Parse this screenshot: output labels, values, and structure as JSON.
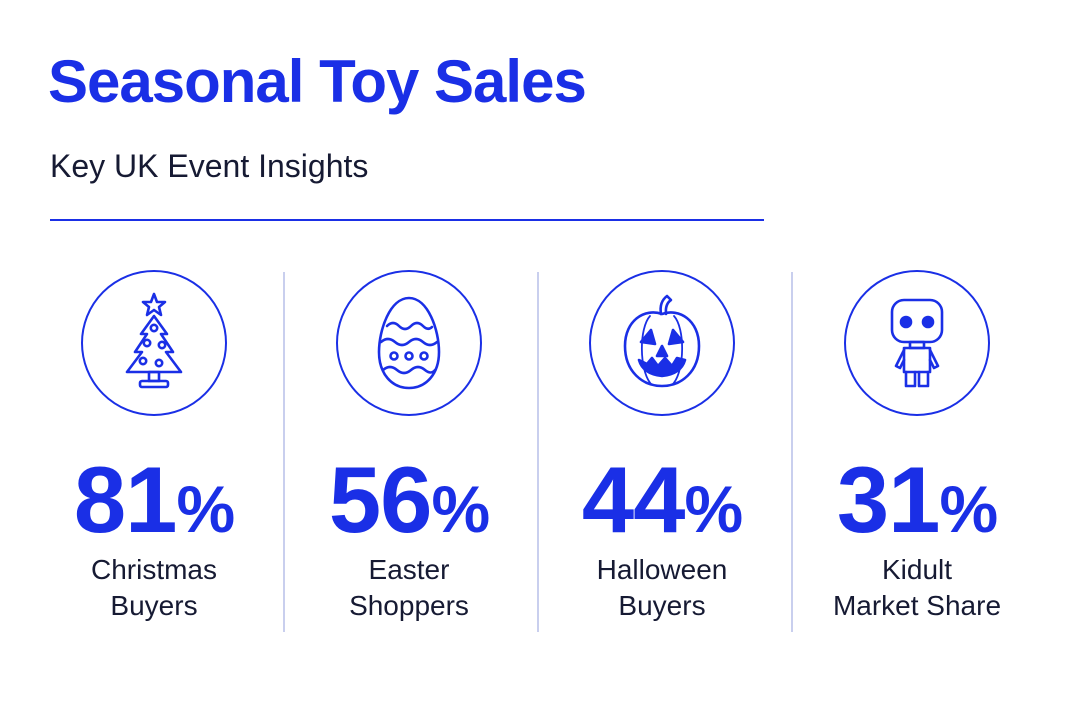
{
  "header": {
    "title": "Seasonal Toy Sales",
    "subtitle": "Key UK Event Insights"
  },
  "colors": {
    "accent": "#1a2fe6",
    "text": "#161a33",
    "divider": "#c9cfee"
  },
  "stats": [
    {
      "icon": "christmas-tree-icon",
      "value": "81",
      "unit": "%",
      "label_line1": "Christmas",
      "label_line2": "Buyers"
    },
    {
      "icon": "easter-egg-icon",
      "value": "56",
      "unit": "%",
      "label_line1": "Easter",
      "label_line2": "Shoppers"
    },
    {
      "icon": "pumpkin-icon",
      "value": "44",
      "unit": "%",
      "label_line1": "Halloween",
      "label_line2": "Buyers"
    },
    {
      "icon": "toy-figure-icon",
      "value": "31",
      "unit": "%",
      "label_line1": "Kidult",
      "label_line2": "Market Share"
    }
  ]
}
